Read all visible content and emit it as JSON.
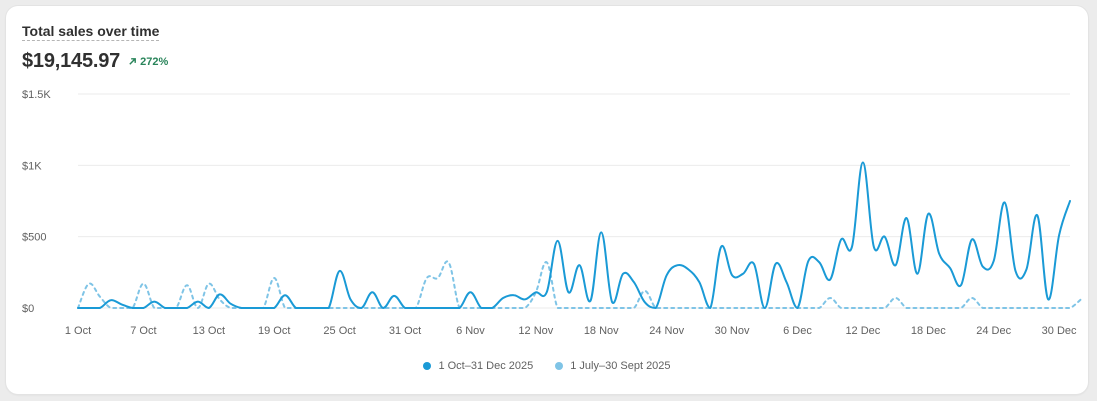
{
  "header": {
    "title": "Total sales over time",
    "total": "$19,145.97",
    "change": "272%",
    "change_icon": "arrow-up-right-icon"
  },
  "colors": {
    "current": "#1a9ad6",
    "previous": "#7fc4e6",
    "positive": "#29845a",
    "grid": "#ebebeb"
  },
  "chart_data": {
    "type": "line",
    "title": "Total sales over time",
    "xlabel": "",
    "ylabel": "",
    "ylim": [
      0,
      1500
    ],
    "y_ticks": [
      {
        "value": 0,
        "label": "$0"
      },
      {
        "value": 500,
        "label": "$500"
      },
      {
        "value": 1000,
        "label": "$1K"
      },
      {
        "value": 1500,
        "label": "$1.5K"
      }
    ],
    "x_ticks": [
      {
        "day": 1,
        "label": "1 Oct"
      },
      {
        "day": 7,
        "label": "7 Oct"
      },
      {
        "day": 13,
        "label": "13 Oct"
      },
      {
        "day": 19,
        "label": "19 Oct"
      },
      {
        "day": 25,
        "label": "25 Oct"
      },
      {
        "day": 31,
        "label": "31 Oct"
      },
      {
        "day": 37,
        "label": "6 Nov"
      },
      {
        "day": 43,
        "label": "12 Nov"
      },
      {
        "day": 49,
        "label": "18 Nov"
      },
      {
        "day": 55,
        "label": "24 Nov"
      },
      {
        "day": 61,
        "label": "30 Nov"
      },
      {
        "day": 67,
        "label": "6 Dec"
      },
      {
        "day": 73,
        "label": "12 Dec"
      },
      {
        "day": 79,
        "label": "18 Dec"
      },
      {
        "day": 85,
        "label": "24 Dec"
      },
      {
        "day": 91,
        "label": "30 Dec"
      }
    ],
    "grid": true,
    "legend_position": "bottom-center",
    "series": [
      {
        "name": "1 Oct–31 Dec 2025",
        "style": "solid",
        "values": [
          0,
          0,
          0,
          55,
          25,
          0,
          0,
          45,
          0,
          0,
          0,
          45,
          0,
          95,
          30,
          0,
          0,
          0,
          0,
          90,
          0,
          0,
          0,
          0,
          260,
          60,
          0,
          110,
          0,
          85,
          0,
          0,
          0,
          0,
          0,
          0,
          110,
          0,
          0,
          70,
          90,
          60,
          110,
          110,
          470,
          110,
          300,
          50,
          530,
          40,
          240,
          180,
          40,
          0,
          230,
          300,
          270,
          180,
          0,
          430,
          230,
          240,
          310,
          0,
          310,
          180,
          0,
          330,
          320,
          200,
          480,
          430,
          1020,
          430,
          500,
          300,
          630,
          240,
          660,
          380,
          280,
          160,
          480,
          290,
          330,
          740,
          260,
          270,
          650,
          60,
          510,
          750
        ]
      },
      {
        "name": "1 July–30 Sept 2025",
        "style": "dashed",
        "values": [
          0,
          170,
          80,
          0,
          0,
          0,
          170,
          0,
          0,
          0,
          160,
          0,
          170,
          60,
          0,
          0,
          0,
          0,
          210,
          0,
          0,
          0,
          0,
          0,
          0,
          0,
          0,
          0,
          0,
          0,
          0,
          0,
          210,
          210,
          320,
          0,
          0,
          0,
          0,
          0,
          0,
          0,
          110,
          320,
          0,
          0,
          0,
          0,
          0,
          0,
          0,
          0,
          120,
          0,
          0,
          0,
          0,
          0,
          0,
          0,
          0,
          0,
          0,
          0,
          0,
          0,
          0,
          0,
          0,
          70,
          0,
          0,
          0,
          0,
          0,
          70,
          0,
          0,
          0,
          0,
          0,
          0,
          70,
          0,
          0,
          0,
          0,
          0,
          0,
          0,
          0,
          0,
          60
        ]
      }
    ]
  }
}
